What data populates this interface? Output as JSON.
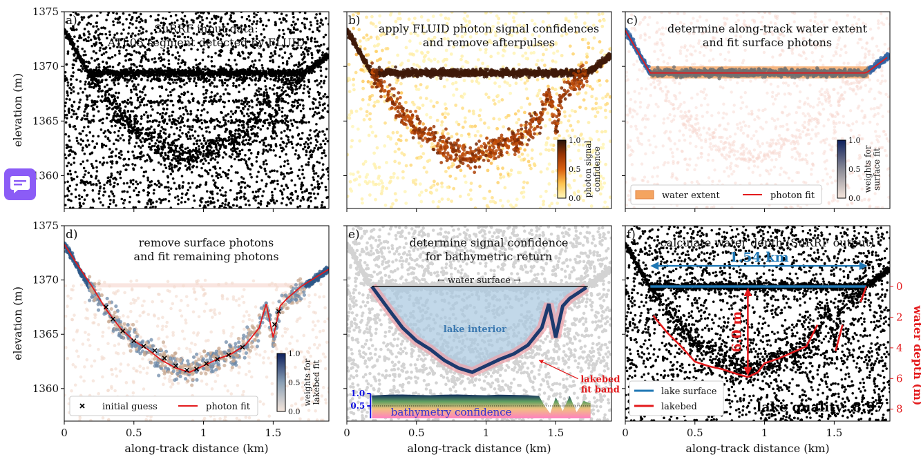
{
  "chart_data": [
    {
      "type": "scatter",
      "panel": "a",
      "title": "SuRRF input data:\nATL03 segment detected by FLUID",
      "xlabel": "",
      "ylabel": "elevation (m)",
      "xlim": [
        0,
        1.9
      ],
      "ylim": [
        1357,
        1375
      ],
      "xticks": [],
      "yticks": [
        "1360",
        "1365",
        "1370",
        "1375"
      ],
      "series": [
        {
          "name": "",
          "color": "#000000",
          "values": []
        }
      ]
    },
    {
      "type": "scatter",
      "panel": "b",
      "title": "apply FLUID photon signal confidences\nand remove afterpulses",
      "xlim": [
        0,
        1.9
      ],
      "ylim": [
        1357,
        1375
      ],
      "colorbar": {
        "label": "photon signal\nconfidence",
        "ticks": [
          "0.0",
          "0.5",
          "1.0"
        ],
        "colormap": "YlOrBr"
      }
    },
    {
      "type": "scatter",
      "panel": "c",
      "title": "determine along-track water extent\nand fit surface photons",
      "xlim": [
        0,
        1.9
      ],
      "ylim": [
        1357,
        1375
      ],
      "surface_elevation": 1369.4,
      "water_extent": [
        0.18,
        1.75
      ],
      "legend": [
        "water extent",
        "photon fit"
      ],
      "legend_position": "lower-left",
      "colorbar": {
        "label": "weights for\nsurface fit",
        "ticks": [
          "0.0",
          "0.5",
          "1.0"
        ]
      }
    },
    {
      "type": "scatter",
      "panel": "d",
      "title": "remove surface photons\nand fit remaining photons",
      "xlabel": "along-track distance (km)",
      "ylabel": "elevation (m)",
      "xlim": [
        0,
        1.9
      ],
      "ylim": [
        1357,
        1375
      ],
      "xticks": [
        "0",
        "0.5",
        "1",
        "1.5"
      ],
      "yticks": [
        "1360",
        "1365",
        "1370",
        "1375"
      ],
      "legend": [
        "initial guess",
        "photon fit"
      ],
      "legend_position": "lower-left",
      "colorbar": {
        "label": "weights for\nlakebed fit",
        "ticks": [
          "0.0",
          "0.5",
          "1.0"
        ]
      },
      "photon_fit": {
        "x": [
          0,
          0.1,
          0.2,
          0.3,
          0.4,
          0.5,
          0.6,
          0.7,
          0.8,
          0.9,
          1.0,
          1.1,
          1.2,
          1.3,
          1.4,
          1.45,
          1.5,
          1.55,
          1.6,
          1.7,
          1.8,
          1.9
        ],
        "y": [
          1373.3,
          1371.3,
          1369.4,
          1367.3,
          1365.6,
          1364.4,
          1363.6,
          1362.6,
          1361.9,
          1361.5,
          1362.1,
          1362.7,
          1363.2,
          1364.0,
          1365.6,
          1367.8,
          1364.7,
          1367.6,
          1368.3,
          1369.4,
          1370.2,
          1371.0
        ]
      },
      "initial_guess": {
        "x": [
          0.3,
          0.35,
          0.42,
          0.5,
          0.57,
          0.65,
          0.72,
          0.8,
          0.88,
          0.95,
          1.02,
          1.1,
          1.18,
          1.28,
          1.51,
          1.54
        ],
        "y": [
          1367.5,
          1366.4,
          1365.3,
          1364.4,
          1363.9,
          1363.5,
          1362.8,
          1362.1,
          1361.7,
          1361.8,
          1362.3,
          1362.7,
          1363.1,
          1363.8,
          1365.9,
          1367.1
        ]
      }
    },
    {
      "type": "area",
      "panel": "e",
      "title": "determine signal confidence\nfor bathymetric return",
      "xlabel": "along-track distance (km)",
      "xlim": [
        0,
        1.9
      ],
      "ylim": [
        1357,
        1375
      ],
      "xticks": [
        "0",
        "0.5",
        "1",
        "1.5"
      ],
      "annotations": [
        "← water surface →",
        "lake interior",
        "lakebed\nfit band",
        "bathymetry confidence",
        "1.0",
        "0.5"
      ],
      "bathymetry_confidence": {
        "x": [
          0.18,
          0.3,
          0.4,
          0.5,
          0.6,
          0.7,
          0.8,
          0.9,
          1.0,
          1.1,
          1.2,
          1.3,
          1.38,
          1.42,
          1.46,
          1.5,
          1.55,
          1.6,
          1.65,
          1.7,
          1.75
        ],
        "y": [
          0.92,
          0.95,
          0.96,
          0.94,
          0.93,
          0.95,
          0.96,
          0.94,
          0.93,
          0.95,
          0.94,
          0.93,
          0.9,
          0.5,
          0.2,
          0.85,
          0.3,
          0.9,
          0.25,
          0.7,
          0.6
        ]
      }
    },
    {
      "type": "line",
      "panel": "f",
      "title": "calculate water depth (SuRRF output)",
      "xlabel": "along-track distance (km)",
      "ylabel_right": "water depth (m)",
      "xlim": [
        0,
        1.9
      ],
      "ylim": [
        1357,
        1375
      ],
      "xticks": [
        "0",
        "0.5",
        "1",
        "1.5"
      ],
      "yticks_right": [
        "0",
        "2",
        "4",
        "6",
        "8"
      ],
      "legend": [
        "lake surface",
        "lakebed"
      ],
      "legend_position": "lower-left",
      "annotations": [
        "1.54 km",
        "6.0 m",
        "lake quality: 8.97"
      ],
      "lake_surface": {
        "x": [
          0.18,
          1.73
        ],
        "depth": 0
      },
      "lakebed": {
        "x": [
          0.2,
          0.3,
          0.4,
          0.5,
          0.6,
          0.7,
          0.8,
          0.88,
          0.95,
          1.0,
          1.1,
          1.2,
          1.3,
          1.38
        ],
        "depth": [
          1.9,
          3.0,
          3.9,
          4.9,
          5.2,
          5.4,
          5.7,
          5.9,
          5.6,
          5.0,
          4.7,
          4.3,
          3.9,
          2.5
        ]
      }
    }
  ],
  "panel_labels": [
    "a)",
    "b)",
    "c)",
    "d)",
    "e)",
    "f)"
  ],
  "colors": {
    "accent": "#8b5cf6",
    "surface_blue": "#1f77b4",
    "lakebed_red": "#e31a1c",
    "water_extent_orange": "#f4a460",
    "lake_fill": "#a8c8e0"
  }
}
